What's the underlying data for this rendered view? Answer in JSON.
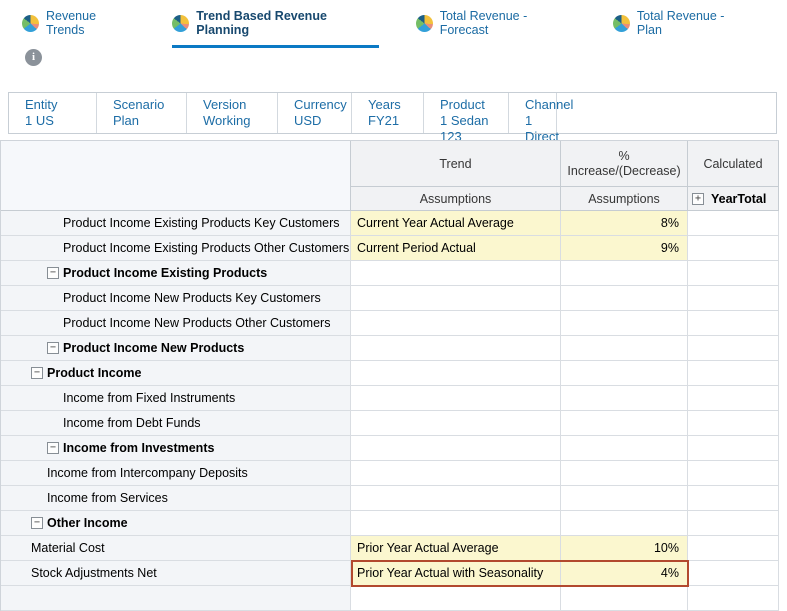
{
  "tabs": [
    {
      "label": "Revenue Trends",
      "active": false
    },
    {
      "label": "Trend Based Revenue Planning",
      "active": true
    },
    {
      "label": "Total Revenue - Forecast",
      "active": false
    },
    {
      "label": "Total Revenue - Plan",
      "active": false
    }
  ],
  "info": {
    "glyph": "i"
  },
  "pov": {
    "items": [
      {
        "dimension": "Entity",
        "member": "1 US"
      },
      {
        "dimension": "Scenario",
        "member": "Plan"
      },
      {
        "dimension": "Version",
        "member": "Working"
      },
      {
        "dimension": "Currency",
        "member": "USD"
      },
      {
        "dimension": "Years",
        "member": "FY21"
      },
      {
        "dimension": "Product",
        "member": "1 Sedan 123"
      },
      {
        "dimension": "Channel",
        "member": "1 Direct"
      }
    ]
  },
  "grid": {
    "headers": {
      "trend": "Trend",
      "pct": "% Increase/(Decrease)",
      "calculated": "Calculated"
    },
    "subheaders": {
      "trend_assumptions": "Assumptions",
      "pct_assumptions": "Assumptions",
      "year_total": "YearTotal"
    },
    "icons": {
      "expand": "+",
      "collapse": "−"
    },
    "rows": [
      {
        "label": "Product Income Existing Products Key Customers",
        "level": 3,
        "parent": false,
        "trend": "Current Year Actual Average",
        "pct": "8%",
        "highlight": false
      },
      {
        "label": "Product Income Existing Products Other Customers",
        "level": 3,
        "parent": false,
        "trend": "Current Period Actual",
        "pct": "9%",
        "highlight": false
      },
      {
        "label": "Product Income Existing Products",
        "level": 2,
        "parent": true,
        "trend": "",
        "pct": "",
        "highlight": false
      },
      {
        "label": "Product Income New Products Key Customers",
        "level": 3,
        "parent": false,
        "trend": "",
        "pct": "",
        "highlight": false
      },
      {
        "label": "Product Income New Products Other Customers",
        "level": 3,
        "parent": false,
        "trend": "",
        "pct": "",
        "highlight": false
      },
      {
        "label": "Product Income New Products",
        "level": 2,
        "parent": true,
        "trend": "",
        "pct": "",
        "highlight": false
      },
      {
        "label": "Product Income",
        "level": 1,
        "parent": true,
        "trend": "",
        "pct": "",
        "highlight": false
      },
      {
        "label": "Income from Fixed Instruments",
        "level": 3,
        "parent": false,
        "trend": "",
        "pct": "",
        "highlight": false
      },
      {
        "label": "Income from Debt Funds",
        "level": 3,
        "parent": false,
        "trend": "",
        "pct": "",
        "highlight": false
      },
      {
        "label": "Income from Investments",
        "level": 2,
        "parent": true,
        "trend": "",
        "pct": "",
        "highlight": false
      },
      {
        "label": "Income from Intercompany Deposits",
        "level": 2,
        "parent": false,
        "trend": "",
        "pct": "",
        "highlight": false
      },
      {
        "label": "Income from Services",
        "level": 2,
        "parent": false,
        "trend": "",
        "pct": "",
        "highlight": false
      },
      {
        "label": "Other Income",
        "level": 1,
        "parent": true,
        "trend": "",
        "pct": "",
        "highlight": false
      },
      {
        "label": "Material Cost",
        "level": 1,
        "parent": false,
        "trend": "Prior Year Actual Average",
        "pct": "10%",
        "highlight": false
      },
      {
        "label": "Stock Adjustments Net",
        "level": 1,
        "parent": false,
        "trend": "Prior Year Actual with Seasonality",
        "pct": "4%",
        "highlight": true
      },
      {
        "label": "",
        "level": 1,
        "parent": false,
        "trend": "",
        "pct": "",
        "highlight": false
      }
    ]
  },
  "colors": {
    "accent_blue": "#0b79c4",
    "tab_active_text": "#17486e",
    "tab_text": "#1b6ba3",
    "pov_text": "#1d6da6",
    "cell_yellow": "#fbf7cf",
    "highlight_red": "#b2492e",
    "row_header_bg": "#f3f5f8",
    "column_header_bg": "#f1f2f4"
  }
}
